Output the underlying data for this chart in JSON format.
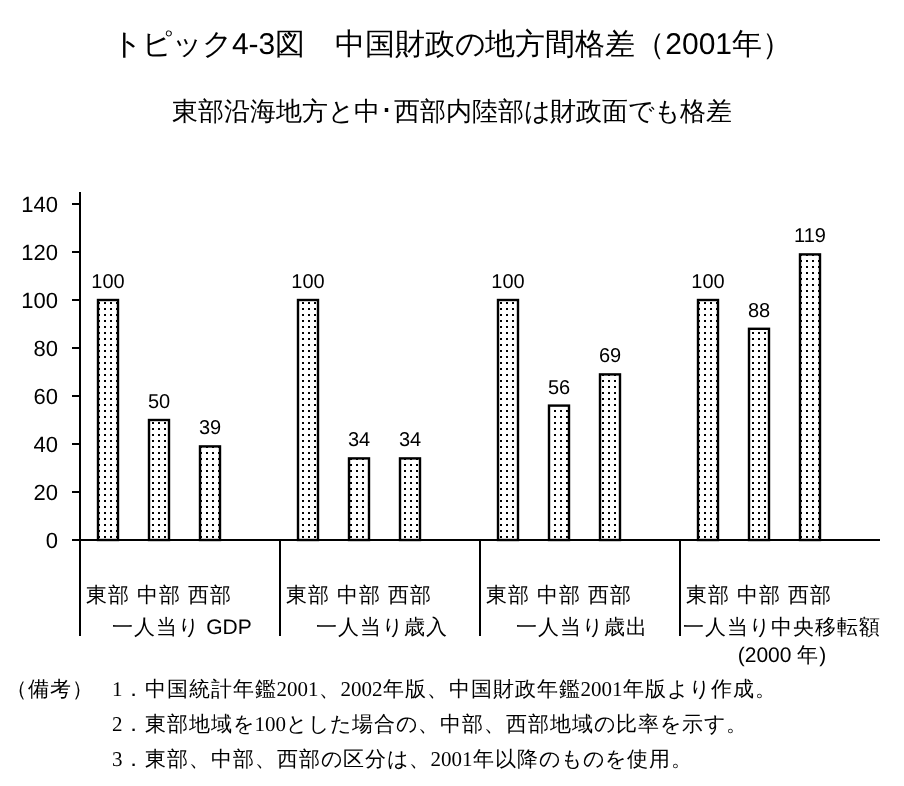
{
  "chart_data": {
    "type": "bar",
    "title": "トピック4-3図　中国財政の地方間格差（2001年）",
    "subtitle": "東部沿海地方と中･西部内陸部は財政面でも格差",
    "categories": [
      "一人当り GDP",
      "一人当り歳入",
      "一人当り歳出",
      "一人当り中央移転額\n(2000 年)"
    ],
    "series": [
      {
        "name": "東部",
        "color": "#000000",
        "values": [
          100,
          100,
          100,
          100
        ]
      },
      {
        "name": "中部",
        "color": "#000000",
        "values": [
          50,
          34,
          56,
          88
        ]
      },
      {
        "name": "西部",
        "color": "#000000",
        "values": [
          39,
          34,
          69,
          119
        ]
      }
    ],
    "ylim": [
      0,
      145
    ],
    "yticks": [
      0,
      20,
      40,
      60,
      80,
      100,
      120,
      140
    ],
    "data_labels": true,
    "grid": false,
    "legend": false,
    "annotations": [
      "（備考）",
      "1．中国統計年鑑2001、2002年版、中国財政年鑑2001年版より作成。",
      "2．東部地域を100とした場合の、中部、西部地域の比率を示す。",
      "3．東部、中部、西部の区分は、2001年以降のものを使用。"
    ]
  }
}
